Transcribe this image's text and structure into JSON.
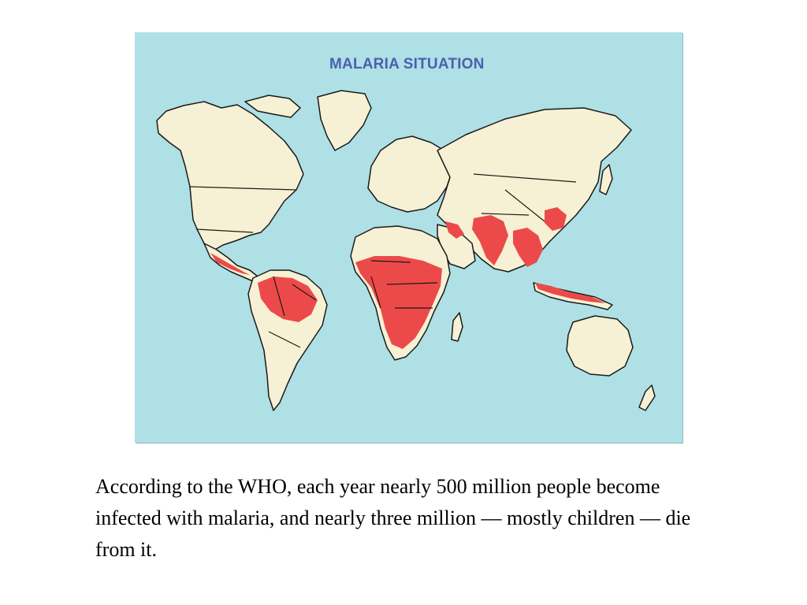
{
  "map": {
    "title": "MALARIA SITUATION",
    "colors": {
      "ocean": "#aee0e6",
      "land": "#f6f1d4",
      "malaria_risk_area": "#ec4a4a",
      "title_text": "#4d5fae"
    }
  },
  "caption": "According to the WHO, each year nearly 500 million people become infected with malaria, and nearly three million — mostly children — die from it."
}
